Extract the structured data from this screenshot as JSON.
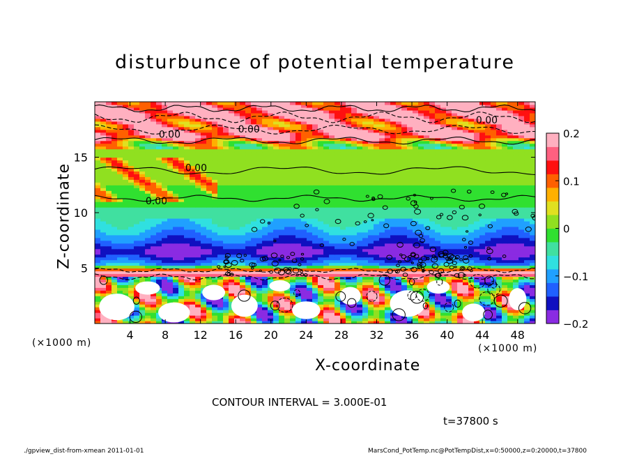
{
  "chart_data": {
    "type": "heatmap",
    "title": "disturbunce of potential temperature",
    "xlabel": "X-coordinate",
    "ylabel": "Z-coordinate",
    "x_unit_label": "(×1000 m)",
    "x_unit_label_right": "(×1000 m)",
    "xlim": [
      0,
      50
    ],
    "ylim": [
      0,
      20
    ],
    "xticks": [
      "4",
      "8",
      "12",
      "16",
      "20",
      "24",
      "28",
      "32",
      "36",
      "40",
      "44",
      "48"
    ],
    "xtick_values": [
      4,
      8,
      12,
      16,
      20,
      24,
      28,
      32,
      36,
      40,
      44,
      48
    ],
    "yticks": [
      "5",
      "10",
      "15"
    ],
    "ytick_values": [
      5,
      10,
      15
    ],
    "colorbar": {
      "min": -0.2,
      "max": 0.2,
      "ticks": [
        "0.2",
        "0.1",
        "0",
        "−0.1",
        "−0.2"
      ],
      "tick_values": [
        0.2,
        0.1,
        0,
        -0.1,
        -0.2
      ],
      "colors": [
        "#8a2be2",
        "#1010c0",
        "#2060ff",
        "#20a0ff",
        "#30e0e0",
        "#40e0a0",
        "#30e030",
        "#90e020",
        "#e0e020",
        "#ffb000",
        "#ff6000",
        "#ff1010",
        "#ff6080",
        "#ffb0c0"
      ]
    },
    "contour_labels": [
      {
        "text": "0.00",
        "x": 8.5,
        "z": 17.0
      },
      {
        "text": "0.00",
        "x": 17.5,
        "z": 17.5
      },
      {
        "text": "0.00",
        "x": 44.5,
        "z": 18.3
      },
      {
        "text": "0.00",
        "x": 11.5,
        "z": 14.0
      },
      {
        "text": "0.00",
        "x": 7.0,
        "z": 11.0
      }
    ],
    "profile": [
      {
        "z": 0.0,
        "value": 0.0
      },
      {
        "z": 3.5,
        "value": 0.02
      },
      {
        "z": 4.7,
        "value": 0.2
      },
      {
        "z": 5.3,
        "value": -0.1
      },
      {
        "z": 6.5,
        "value": -0.19
      },
      {
        "z": 7.3,
        "value": -0.14
      },
      {
        "z": 8.5,
        "value": -0.09
      },
      {
        "z": 10.5,
        "value": -0.03
      },
      {
        "z": 12.5,
        "value": 0.0
      },
      {
        "z": 15.0,
        "value": 0.0
      },
      {
        "z": 16.2,
        "value": 0.03
      },
      {
        "z": 17.0,
        "value": 0.2
      },
      {
        "z": 18.0,
        "value": 0.12
      },
      {
        "z": 19.0,
        "value": 0.2
      },
      {
        "z": 20.0,
        "value": 0.15
      }
    ]
  },
  "contour_interval": "CONTOUR INTERVAL = 3.000E-01",
  "time_label": "t=37800 s",
  "footer_left": "./gpview_dist-from-xmean  2011-01-01",
  "footer_right": "MarsCond_PotTemp.nc@PotTempDist,x=0:50000,z=0:20000,t=37800"
}
